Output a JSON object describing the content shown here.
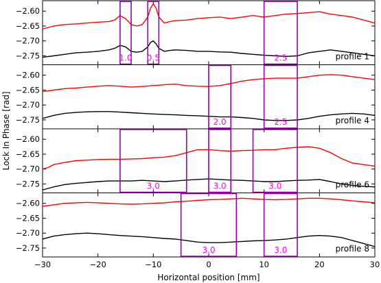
{
  "chart_data": {
    "type": "line",
    "xlabel": "Horizontal position [mm]",
    "ylabel": "Lock In Phase [rad]",
    "xlim": [
      -30,
      30
    ],
    "ylim": [
      -2.78,
      -2.565
    ],
    "x_ticks": [
      -30,
      -20,
      -10,
      0,
      10,
      20,
      30
    ],
    "y_ticks": [
      -2.6,
      -2.65,
      -2.7,
      -2.75
    ],
    "series_colors": [
      "#ff0000",
      "#000000"
    ],
    "box_color": "#9900aa",
    "box_label_color": "#ff00ff",
    "panels": [
      {
        "label": "profile 1",
        "series": [
          {
            "color": "#ff0000",
            "x": [
              -30,
              -28,
              -26,
              -24,
              -22,
              -20,
              -18,
              -17,
              -16,
              -15,
              -14,
              -13,
              -12,
              -11,
              -10.5,
              -10,
              -9.5,
              -9,
              -8,
              -7,
              -6,
              -4,
              -2,
              0,
              2,
              4,
              6,
              8,
              10,
              12,
              14,
              16,
              18,
              20,
              22,
              24,
              26,
              28,
              30
            ],
            "y": [
              -2.66,
              -2.65,
              -2.645,
              -2.643,
              -2.64,
              -2.637,
              -2.635,
              -2.63,
              -2.615,
              -2.625,
              -2.645,
              -2.65,
              -2.645,
              -2.62,
              -2.59,
              -2.575,
              -2.59,
              -2.62,
              -2.64,
              -2.635,
              -2.632,
              -2.63,
              -2.625,
              -2.622,
              -2.62,
              -2.625,
              -2.62,
              -2.615,
              -2.62,
              -2.615,
              -2.61,
              -2.608,
              -2.605,
              -2.602,
              -2.61,
              -2.615,
              -2.62,
              -2.63,
              -2.64
            ]
          },
          {
            "color": "#000000",
            "x": [
              -30,
              -28,
              -26,
              -24,
              -22,
              -20,
              -18,
              -17,
              -16,
              -15,
              -14,
              -13,
              -12,
              -11,
              -10.5,
              -10,
              -9.5,
              -9,
              -8,
              -7,
              -6,
              -4,
              -2,
              0,
              2,
              4,
              6,
              8,
              10,
              12,
              14,
              16,
              18,
              20,
              22,
              24,
              26,
              28,
              30
            ],
            "y": [
              -2.755,
              -2.75,
              -2.745,
              -2.74,
              -2.738,
              -2.735,
              -2.73,
              -2.725,
              -2.715,
              -2.72,
              -2.735,
              -2.738,
              -2.735,
              -2.72,
              -2.705,
              -2.7,
              -2.71,
              -2.725,
              -2.735,
              -2.732,
              -2.73,
              -2.732,
              -2.735,
              -2.735,
              -2.737,
              -2.738,
              -2.742,
              -2.745,
              -2.748,
              -2.75,
              -2.752,
              -2.75,
              -2.74,
              -2.735,
              -2.73,
              -2.735,
              -2.74,
              -2.745,
              -2.75
            ]
          }
        ],
        "boxes": [
          {
            "x0": -16,
            "x1": -14,
            "label": "1.0"
          },
          {
            "x0": -11,
            "x1": -9,
            "label": "0.5"
          },
          {
            "x0": 10,
            "x1": 16,
            "label": "2.5"
          }
        ]
      },
      {
        "label": "profile 4",
        "series": [
          {
            "color": "#ff0000",
            "x": [
              -30,
              -28,
              -26,
              -24,
              -22,
              -20,
              -18,
              -16,
              -14,
              -12,
              -10,
              -8,
              -6,
              -4,
              -2,
              0,
              2,
              4,
              6,
              8,
              10,
              12,
              14,
              16,
              18,
              20,
              22,
              24,
              26,
              28,
              30
            ],
            "y": [
              -2.655,
              -2.65,
              -2.645,
              -2.643,
              -2.64,
              -2.637,
              -2.635,
              -2.637,
              -2.64,
              -2.638,
              -2.635,
              -2.632,
              -2.63,
              -2.635,
              -2.637,
              -2.638,
              -2.635,
              -2.628,
              -2.62,
              -2.615,
              -2.612,
              -2.61,
              -2.61,
              -2.61,
              -2.605,
              -2.6,
              -2.598,
              -2.6,
              -2.605,
              -2.61,
              -2.615
            ]
          },
          {
            "color": "#000000",
            "x": [
              -30,
              -28,
              -26,
              -24,
              -22,
              -20,
              -18,
              -16,
              -14,
              -12,
              -10,
              -8,
              -6,
              -4,
              -2,
              0,
              2,
              4,
              6,
              8,
              10,
              12,
              14,
              16,
              18,
              20,
              22,
              24,
              26,
              28,
              30
            ],
            "y": [
              -2.745,
              -2.735,
              -2.728,
              -2.725,
              -2.723,
              -2.722,
              -2.722,
              -2.724,
              -2.726,
              -2.728,
              -2.73,
              -2.732,
              -2.733,
              -2.735,
              -2.736,
              -2.738,
              -2.74,
              -2.74,
              -2.742,
              -2.745,
              -2.75,
              -2.752,
              -2.752,
              -2.75,
              -2.745,
              -2.738,
              -2.733,
              -2.73,
              -2.728,
              -2.73,
              -2.735
            ]
          }
        ],
        "boxes": [
          {
            "x0": 0,
            "x1": 4,
            "label": "2.0"
          },
          {
            "x0": 10,
            "x1": 16,
            "label": "2.5"
          }
        ]
      },
      {
        "label": "profile 6",
        "series": [
          {
            "color": "#ff0000",
            "x": [
              -30,
              -29,
              -28,
              -26,
              -24,
              -22,
              -20,
              -18,
              -16,
              -14,
              -12,
              -10,
              -8,
              -6,
              -4,
              -2,
              0,
              2,
              4,
              6,
              8,
              10,
              12,
              14,
              16,
              18,
              20,
              22,
              24,
              26,
              28,
              30
            ],
            "y": [
              -2.7,
              -2.695,
              -2.685,
              -2.678,
              -2.672,
              -2.67,
              -2.668,
              -2.667,
              -2.667,
              -2.666,
              -2.665,
              -2.662,
              -2.66,
              -2.655,
              -2.645,
              -2.635,
              -2.635,
              -2.638,
              -2.64,
              -2.638,
              -2.637,
              -2.635,
              -2.635,
              -2.63,
              -2.627,
              -2.625,
              -2.63,
              -2.645,
              -2.665,
              -2.68,
              -2.685,
              -2.69
            ]
          },
          {
            "color": "#000000",
            "x": [
              -30,
              -29,
              -28,
              -26,
              -24,
              -22,
              -20,
              -18,
              -16,
              -14,
              -12,
              -10,
              -8,
              -6,
              -4,
              -2,
              0,
              2,
              4,
              6,
              8,
              10,
              12,
              14,
              16,
              18,
              20,
              22,
              24,
              26,
              28,
              30
            ],
            "y": [
              -2.77,
              -2.765,
              -2.76,
              -2.752,
              -2.748,
              -2.745,
              -2.742,
              -2.74,
              -2.74,
              -2.74,
              -2.738,
              -2.74,
              -2.742,
              -2.74,
              -2.737,
              -2.735,
              -2.733,
              -2.735,
              -2.737,
              -2.738,
              -2.74,
              -2.742,
              -2.742,
              -2.74,
              -2.738,
              -2.737,
              -2.735,
              -2.742,
              -2.75,
              -2.755,
              -2.758,
              -2.76
            ]
          }
        ],
        "boxes": [
          {
            "x0": -16,
            "x1": -4,
            "label": "3.0"
          },
          {
            "x0": 0,
            "x1": 4,
            "label": "3.0"
          },
          {
            "x0": 8,
            "x1": 16,
            "label": "3.0"
          }
        ]
      },
      {
        "label": "profile 8",
        "series": [
          {
            "color": "#ff0000",
            "x": [
              -30,
              -28,
              -26,
              -24,
              -22,
              -20,
              -18,
              -16,
              -14,
              -12,
              -10,
              -8,
              -6,
              -4,
              -2,
              0,
              2,
              4,
              6,
              8,
              10,
              12,
              14,
              16,
              18,
              20,
              22,
              24,
              26,
              28,
              30
            ],
            "y": [
              -2.61,
              -2.605,
              -2.6,
              -2.598,
              -2.597,
              -2.598,
              -2.6,
              -2.602,
              -2.603,
              -2.602,
              -2.6,
              -2.598,
              -2.595,
              -2.593,
              -2.59,
              -2.588,
              -2.587,
              -2.585,
              -2.583,
              -2.585,
              -2.587,
              -2.588,
              -2.587,
              -2.585,
              -2.583,
              -2.583,
              -2.585,
              -2.588,
              -2.592,
              -2.595,
              -2.598
            ]
          },
          {
            "color": "#000000",
            "x": [
              -30,
              -28,
              -26,
              -24,
              -22,
              -20,
              -18,
              -16,
              -14,
              -12,
              -10,
              -8,
              -6,
              -4,
              -2,
              0,
              2,
              4,
              6,
              8,
              10,
              12,
              14,
              16,
              18,
              20,
              22,
              24,
              26,
              28,
              30
            ],
            "y": [
              -2.72,
              -2.71,
              -2.705,
              -2.702,
              -2.7,
              -2.702,
              -2.705,
              -2.708,
              -2.71,
              -2.712,
              -2.715,
              -2.718,
              -2.72,
              -2.725,
              -2.73,
              -2.732,
              -2.732,
              -2.73,
              -2.728,
              -2.726,
              -2.725,
              -2.723,
              -2.72,
              -2.715,
              -2.71,
              -2.708,
              -2.71,
              -2.715,
              -2.725,
              -2.735,
              -2.745
            ]
          }
        ],
        "boxes": [
          {
            "x0": -5,
            "x1": 5,
            "label": "3.0"
          },
          {
            "x0": 10,
            "x1": 16,
            "label": "3.0"
          }
        ]
      }
    ]
  }
}
